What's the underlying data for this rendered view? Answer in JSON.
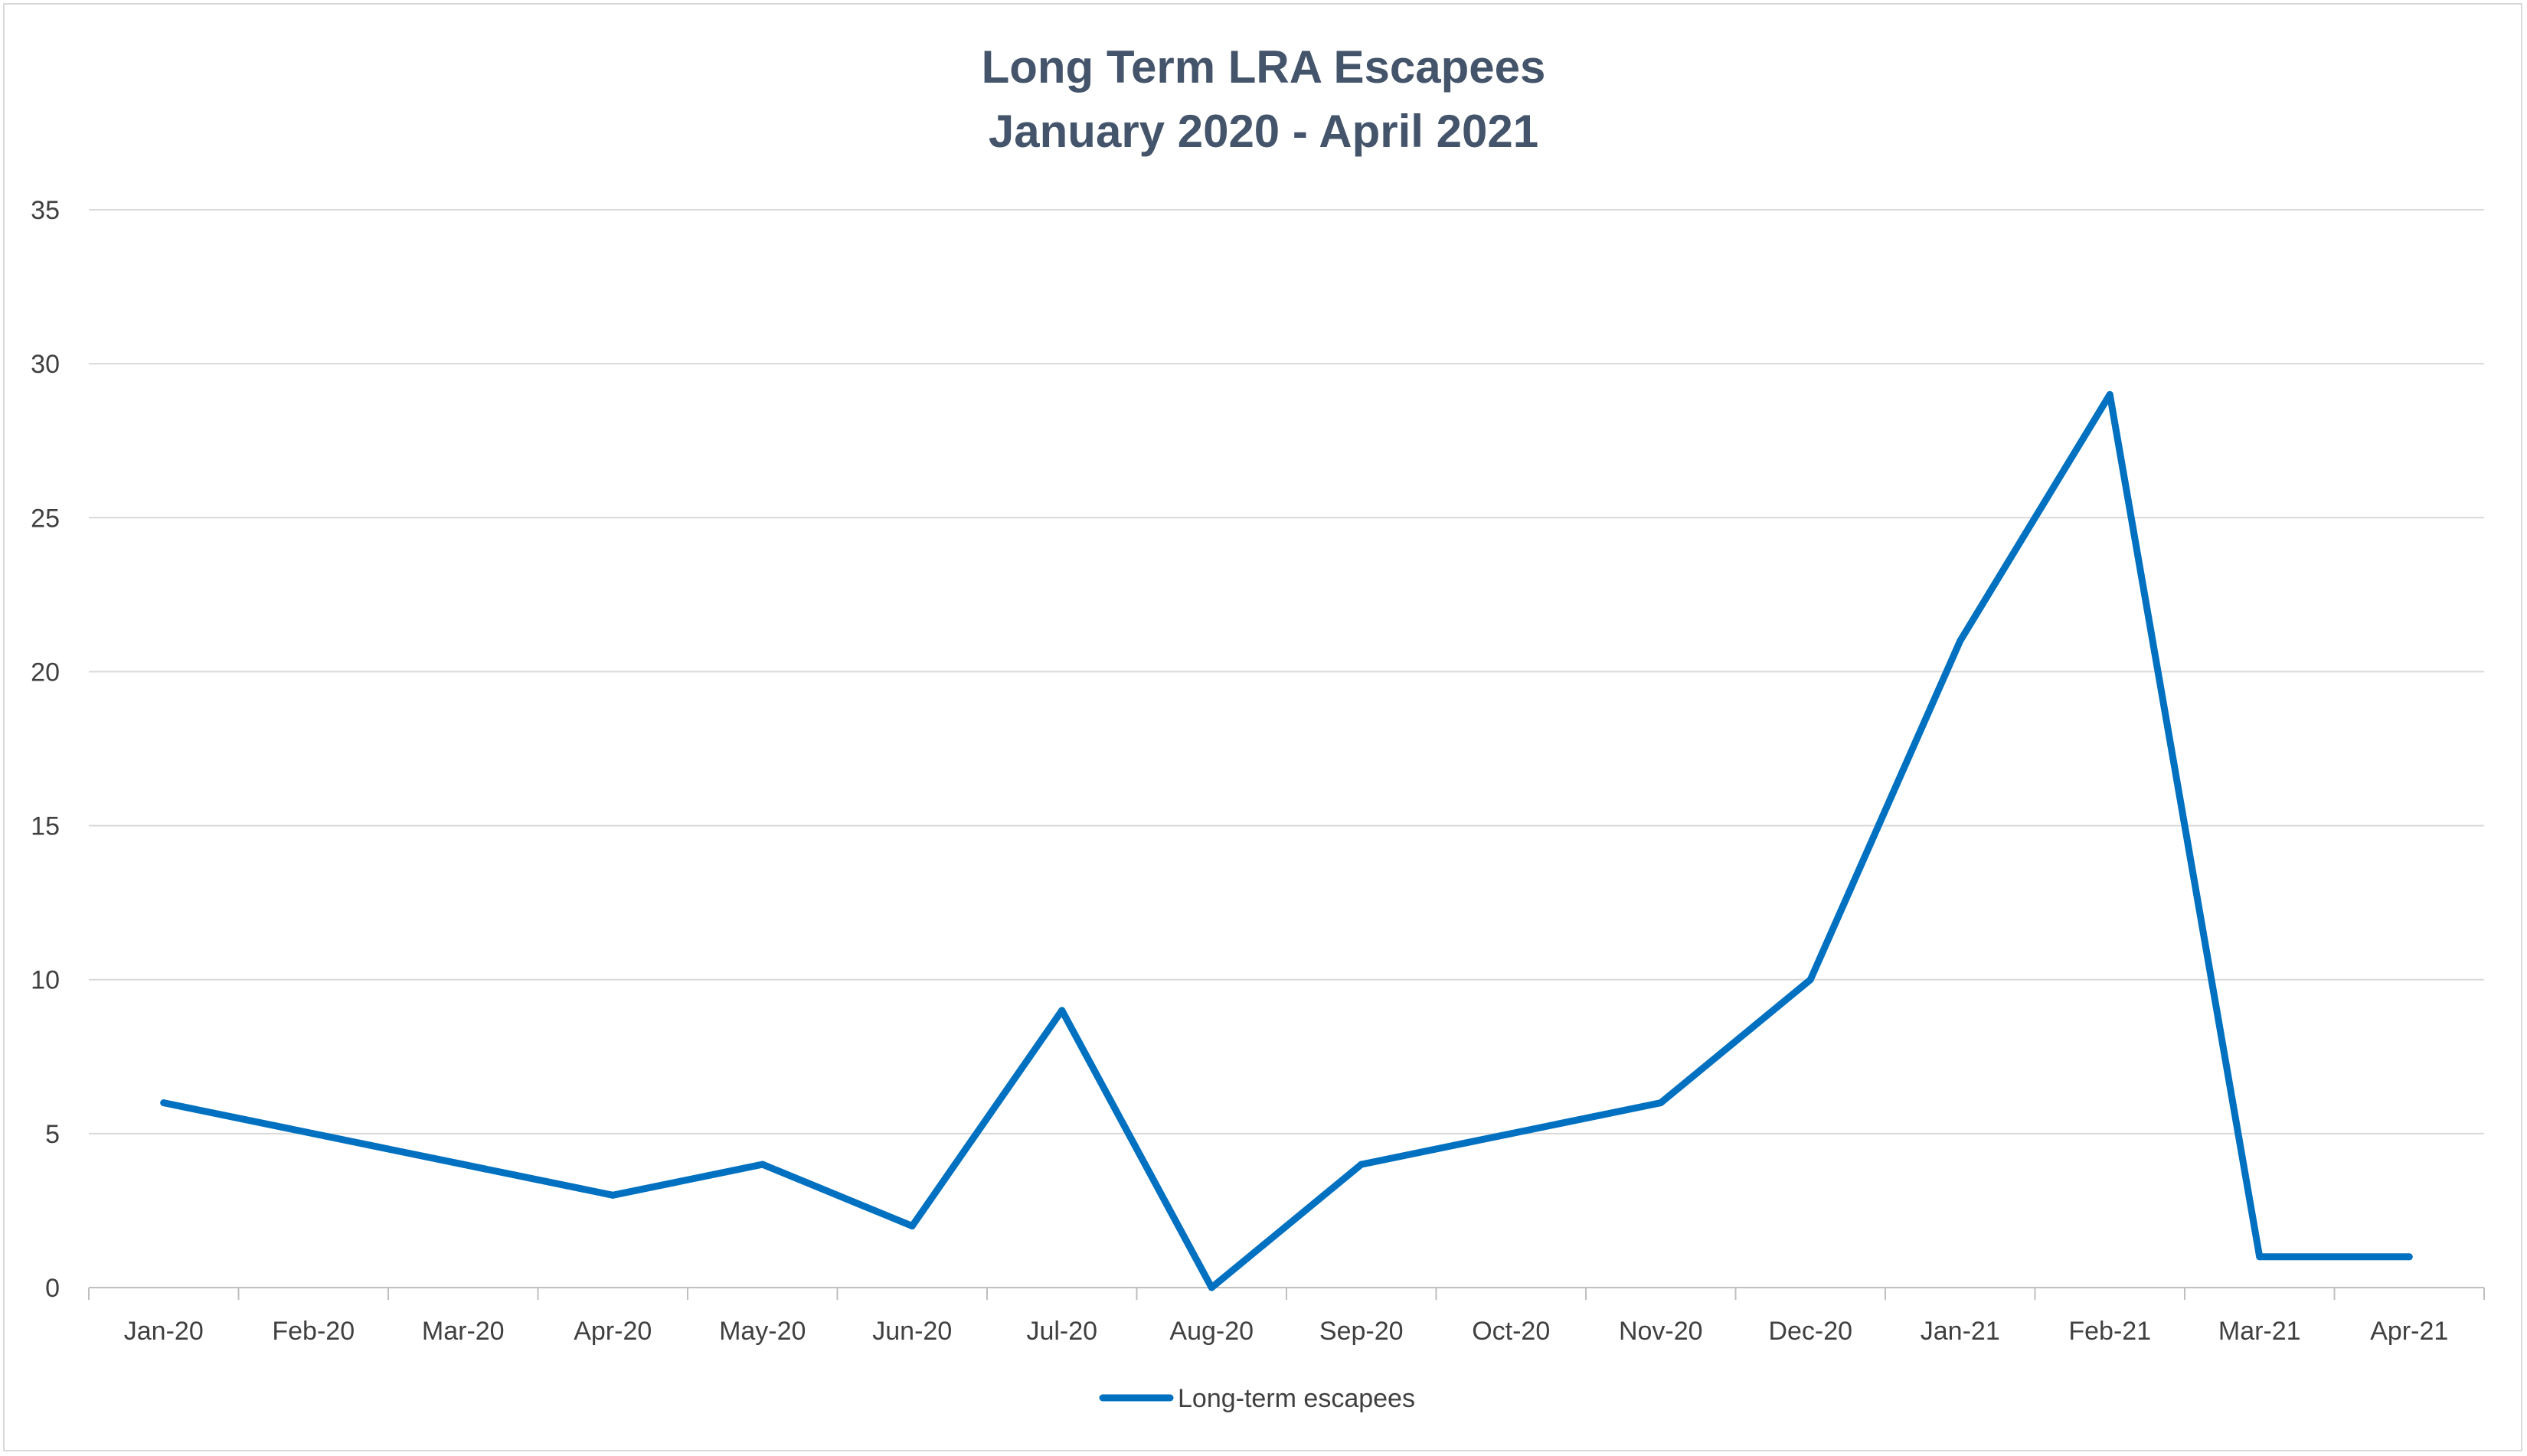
{
  "chart_data": {
    "type": "line",
    "title": [
      "Long Term LRA Escapees",
      "January 2020 - April 2021"
    ],
    "categories": [
      "Jan-20",
      "Feb-20",
      "Mar-20",
      "Apr-20",
      "May-20",
      "Jun-20",
      "Jul-20",
      "Aug-20",
      "Sep-20",
      "Oct-20",
      "Nov-20",
      "Dec-20",
      "Jan-21",
      "Feb-21",
      "Mar-21",
      "Apr-21"
    ],
    "series": [
      {
        "name": "Long-term escapees",
        "values": [
          6,
          5,
          4,
          3,
          4,
          2,
          9,
          0,
          4,
          5,
          6,
          10,
          21,
          29,
          1,
          1
        ],
        "color": "#0070c0"
      }
    ],
    "ylim": [
      0,
      35
    ],
    "yticks": [
      0,
      5,
      10,
      15,
      20,
      25,
      30,
      35
    ],
    "grid": true,
    "legend": "bottom",
    "colors": {
      "grid": "#d9d9d9",
      "axis": "#bfbfbf",
      "title": "#44546a",
      "text": "#404040"
    }
  }
}
